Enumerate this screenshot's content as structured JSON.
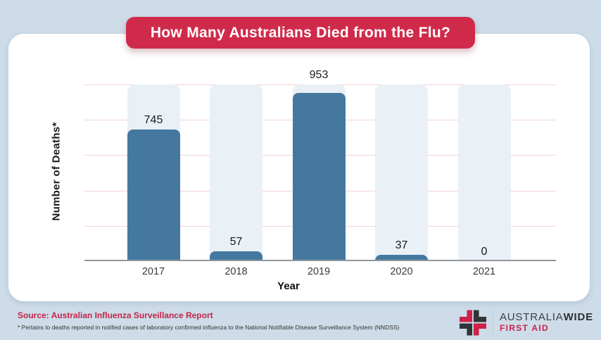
{
  "title_banner": {
    "text": "How Many Australians Died from the Flu?",
    "bg": "#d02a4b"
  },
  "chart_data": {
    "type": "bar",
    "categories": [
      "2017",
      "2018",
      "2019",
      "2020",
      "2021"
    ],
    "values": [
      745,
      57,
      953,
      37,
      0
    ],
    "title": "How Many Australians Died from the Flu?",
    "xlabel": "Year",
    "ylabel": "Number of Deaths*",
    "ylim": [
      0,
      1000
    ],
    "gridline_step": 200,
    "grid": true,
    "legend": false,
    "bar_color": "#45789f",
    "bar_track_color": "#e9f0f6",
    "gridline_color": "#f2d2d7",
    "axis_color": "#8f979e"
  },
  "footer": {
    "source": "Source: Australian Influenza Surveillance Report",
    "note": "* Pertains to deaths reported in notified cases of laboratory confirmed influenza to the National Notifiable Disease Surveillance System (NNDSS)",
    "logo": {
      "brand_main": "AUSTRALIA",
      "brand_bold": "WIDE",
      "brand_sub": "FIRST AID",
      "icon_red": "#cf2148",
      "icon_dark": "#303338"
    }
  }
}
